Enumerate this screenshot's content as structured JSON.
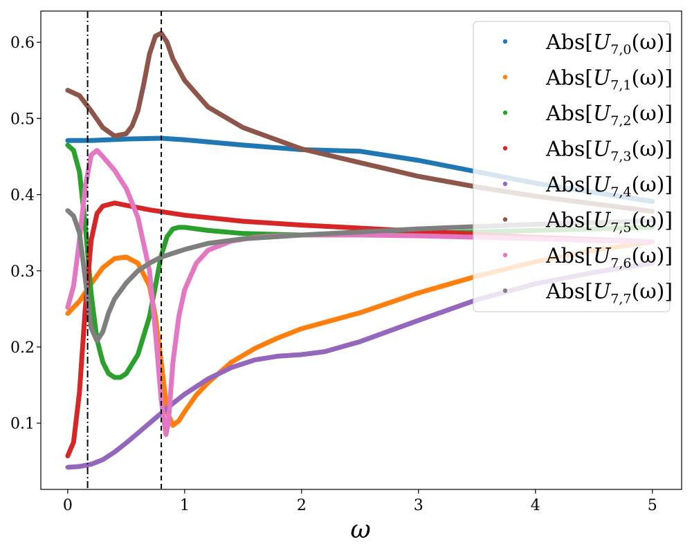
{
  "chart_data": {
    "type": "scatter",
    "xlabel": "ω",
    "ylabel": "",
    "xlim": [
      -0.23,
      5.25
    ],
    "ylim": [
      0.013,
      0.641
    ],
    "x_ticks": [
      0,
      1,
      2,
      3,
      4,
      5
    ],
    "x_tick_labels": [
      "0",
      "1",
      "2",
      "3",
      "4",
      "5"
    ],
    "y_ticks": [
      0.1,
      0.2,
      0.3,
      0.4,
      0.5,
      0.6
    ],
    "y_tick_labels": [
      "0.1",
      "0.2",
      "0.3",
      "0.4",
      "0.5",
      "0.6"
    ],
    "grid": false,
    "legend_position": "upper right",
    "reference_lines": [
      {
        "x": 0.17,
        "style": "dash-dot",
        "color": "#000000"
      },
      {
        "x": 0.8,
        "style": "dashed",
        "color": "#000000"
      }
    ],
    "series": [
      {
        "name": "Abs[U7,0(ω)]",
        "label_main": "Abs[",
        "label_U": "U",
        "label_sub": "7,0",
        "label_tail": "(ω)]",
        "color": "#1f77b4",
        "x": [
          0,
          0.2,
          0.5,
          0.8,
          1.0,
          1.5,
          2.0,
          2.5,
          3.0,
          3.5,
          4.0,
          4.5,
          5.0
        ],
        "y": [
          0.471,
          0.471,
          0.473,
          0.474,
          0.472,
          0.465,
          0.459,
          0.457,
          0.445,
          0.43,
          0.415,
          0.403,
          0.391
        ]
      },
      {
        "name": "Abs[U7,1(ω)]",
        "label_main": "Abs[",
        "label_U": "U",
        "label_sub": "7,1",
        "label_tail": "(ω)]",
        "color": "#ff7f0e",
        "x": [
          0,
          0.1,
          0.2,
          0.3,
          0.4,
          0.5,
          0.6,
          0.7,
          0.75,
          0.8,
          0.85,
          0.9,
          0.95,
          1.0,
          1.1,
          1.2,
          1.4,
          1.6,
          1.8,
          2.0,
          2.5,
          3.0,
          3.5,
          4.0,
          4.5,
          5.0
        ],
        "y": [
          0.244,
          0.26,
          0.283,
          0.304,
          0.316,
          0.318,
          0.31,
          0.28,
          0.24,
          0.18,
          0.115,
          0.097,
          0.103,
          0.115,
          0.137,
          0.153,
          0.18,
          0.198,
          0.212,
          0.224,
          0.245,
          0.271,
          0.293,
          0.312,
          0.327,
          0.338
        ]
      },
      {
        "name": "Abs[U7,2(ω)]",
        "label_main": "Abs[",
        "label_U": "U",
        "label_sub": "7,2",
        "label_tail": "(ω)]",
        "color": "#2ca02c",
        "x": [
          0,
          0.05,
          0.1,
          0.15,
          0.2,
          0.25,
          0.3,
          0.35,
          0.4,
          0.45,
          0.5,
          0.6,
          0.7,
          0.75,
          0.8,
          0.85,
          0.9,
          0.95,
          1.0,
          1.2,
          1.5,
          2.0,
          2.5,
          3.0,
          3.5,
          4.0,
          4.5,
          5.0
        ],
        "y": [
          0.465,
          0.458,
          0.43,
          0.36,
          0.27,
          0.21,
          0.18,
          0.165,
          0.16,
          0.16,
          0.165,
          0.19,
          0.24,
          0.28,
          0.32,
          0.345,
          0.355,
          0.357,
          0.357,
          0.353,
          0.349,
          0.347,
          0.347,
          0.349,
          0.351,
          0.353,
          0.355,
          0.357
        ]
      },
      {
        "name": "Abs[U7,3(ω)]",
        "label_main": "Abs[",
        "label_U": "U",
        "label_sub": "7,3",
        "label_tail": "(ω)]",
        "color": "#d62728",
        "x": [
          0,
          0.05,
          0.1,
          0.15,
          0.2,
          0.25,
          0.3,
          0.4,
          0.5,
          0.7,
          1.0,
          1.5,
          2.0,
          2.5,
          3.0,
          3.5,
          4.0,
          4.5,
          5.0
        ],
        "y": [
          0.057,
          0.075,
          0.14,
          0.25,
          0.34,
          0.375,
          0.385,
          0.389,
          0.386,
          0.38,
          0.373,
          0.365,
          0.36,
          0.356,
          0.352,
          0.348,
          0.344,
          0.341,
          0.338
        ]
      },
      {
        "name": "Abs[U7,4(ω)]",
        "label_main": "Abs[",
        "label_U": "U",
        "label_sub": "7,4",
        "label_tail": "(ω)]",
        "color": "#9467bd",
        "x": [
          0,
          0.1,
          0.2,
          0.3,
          0.4,
          0.5,
          0.6,
          0.7,
          0.8,
          0.9,
          1.0,
          1.2,
          1.4,
          1.6,
          1.8,
          2.0,
          2.2,
          2.5,
          3.0,
          3.5,
          4.0,
          4.5,
          5.0
        ],
        "y": [
          0.042,
          0.043,
          0.046,
          0.052,
          0.062,
          0.074,
          0.087,
          0.1,
          0.113,
          0.126,
          0.138,
          0.158,
          0.173,
          0.183,
          0.188,
          0.19,
          0.194,
          0.207,
          0.235,
          0.262,
          0.283,
          0.298,
          0.31
        ]
      },
      {
        "name": "Abs[U7,5(ω)]",
        "label_main": "Abs[",
        "label_U": "U",
        "label_sub": "7,5",
        "label_tail": "(ω)]",
        "color": "#8c564b",
        "x": [
          0,
          0.1,
          0.2,
          0.3,
          0.4,
          0.5,
          0.55,
          0.6,
          0.65,
          0.7,
          0.75,
          0.8,
          0.85,
          0.9,
          1.0,
          1.2,
          1.5,
          2.0,
          2.5,
          3.0,
          3.5,
          4.0,
          4.5,
          5.0
        ],
        "y": [
          0.537,
          0.53,
          0.51,
          0.488,
          0.477,
          0.48,
          0.49,
          0.51,
          0.545,
          0.585,
          0.608,
          0.612,
          0.6,
          0.578,
          0.55,
          0.515,
          0.488,
          0.46,
          0.442,
          0.424,
          0.41,
          0.398,
          0.388,
          0.378
        ]
      },
      {
        "name": "Abs[U7,6(ω)]",
        "label_main": "Abs[",
        "label_U": "U",
        "label_sub": "7,6",
        "label_tail": "(ω)]",
        "color": "#e377c2",
        "x": [
          0,
          0.05,
          0.1,
          0.15,
          0.2,
          0.25,
          0.3,
          0.4,
          0.5,
          0.6,
          0.7,
          0.75,
          0.8,
          0.84,
          0.86,
          0.9,
          0.95,
          1.0,
          1.1,
          1.2,
          1.4,
          1.6,
          1.8,
          2.0,
          2.5,
          3.0,
          3.5,
          4.0,
          4.5,
          5.0
        ],
        "y": [
          0.252,
          0.28,
          0.34,
          0.41,
          0.452,
          0.458,
          0.45,
          0.432,
          0.408,
          0.37,
          0.3,
          0.22,
          0.13,
          0.085,
          0.1,
          0.18,
          0.24,
          0.275,
          0.31,
          0.327,
          0.339,
          0.344,
          0.346,
          0.347,
          0.347,
          0.346,
          0.344,
          0.342,
          0.34,
          0.338
        ]
      },
      {
        "name": "Abs[U7,7(ω)]",
        "label_main": "Abs[",
        "label_U": "U",
        "label_sub": "7,7",
        "label_tail": "(ω)]",
        "color": "#7f7f7f",
        "x": [
          0,
          0.05,
          0.1,
          0.15,
          0.2,
          0.25,
          0.3,
          0.35,
          0.4,
          0.5,
          0.6,
          0.7,
          0.8,
          1.0,
          1.2,
          1.5,
          2.0,
          2.5,
          3.0,
          3.5,
          4.0,
          4.5,
          5.0
        ],
        "y": [
          0.379,
          0.372,
          0.35,
          0.29,
          0.225,
          0.208,
          0.22,
          0.245,
          0.263,
          0.284,
          0.3,
          0.31,
          0.318,
          0.328,
          0.336,
          0.342,
          0.347,
          0.351,
          0.355,
          0.358,
          0.361,
          0.363,
          0.366
        ]
      }
    ]
  }
}
